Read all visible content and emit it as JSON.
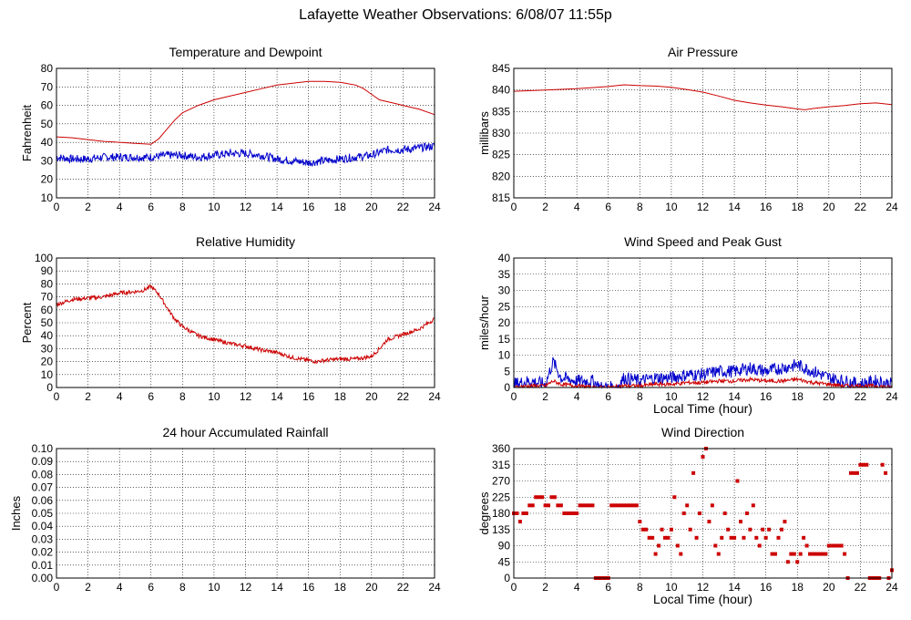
{
  "page_title": "Lafayette Weather Observations: 6/08/07 11:55p",
  "colors": {
    "red": "#cc0000",
    "blue": "#0000cc",
    "grid": "#000000"
  },
  "chart_data": [
    {
      "id": "temperature",
      "type": "line",
      "title": "Temperature and Dewpoint",
      "xlabel": "",
      "ylabel": "Fahrenheit",
      "xlim": [
        0,
        24
      ],
      "ylim": [
        10,
        80
      ],
      "xticks": [
        0,
        2,
        4,
        6,
        8,
        10,
        12,
        14,
        16,
        18,
        20,
        22,
        24
      ],
      "yticks": [
        10,
        20,
        30,
        40,
        50,
        60,
        70,
        80
      ],
      "grid": true,
      "series": [
        {
          "color": "#cc0000",
          "x": [
            0,
            1,
            2,
            3,
            4,
            5,
            6,
            6.5,
            7,
            7.5,
            8,
            8.5,
            9,
            10,
            11,
            12,
            13,
            14,
            15,
            16,
            17,
            18,
            19,
            19.5,
            20,
            20.5,
            21,
            21.5,
            22,
            23,
            24
          ],
          "y": [
            43,
            42.5,
            41.5,
            40.5,
            40,
            39.5,
            39,
            42,
            47,
            52,
            56,
            58,
            60,
            63,
            65,
            67,
            69,
            71,
            72,
            73,
            73,
            72.5,
            71,
            69,
            66,
            63,
            62,
            61,
            60,
            58,
            55
          ]
        },
        {
          "color": "#0000cc",
          "x": [
            0,
            1,
            2,
            3,
            4,
            5,
            6,
            7,
            8,
            9,
            10,
            11,
            12,
            13,
            14,
            15,
            16,
            17,
            18,
            19,
            20,
            21,
            22,
            23,
            24
          ],
          "y": [
            32,
            31,
            31,
            32,
            32,
            32,
            32,
            33,
            33,
            32,
            33,
            34,
            34,
            33,
            31,
            30,
            29,
            30,
            31,
            32,
            33,
            36,
            36,
            37,
            38
          ],
          "noisy": 2.2
        }
      ]
    },
    {
      "id": "pressure",
      "type": "line",
      "title": "Air Pressure",
      "xlabel": "",
      "ylabel": "millibars",
      "xlim": [
        0,
        24
      ],
      "ylim": [
        815,
        845
      ],
      "xticks": [
        0,
        2,
        4,
        6,
        8,
        10,
        12,
        14,
        16,
        18,
        20,
        22,
        24
      ],
      "yticks": [
        815,
        820,
        825,
        830,
        835,
        840,
        845
      ],
      "grid": true,
      "series": [
        {
          "color": "#cc0000",
          "x": [
            0,
            2,
            4,
            6,
            7,
            8,
            9,
            10,
            11,
            12,
            13,
            14,
            15,
            16,
            17,
            18,
            18.5,
            19,
            20,
            21,
            22,
            23,
            24
          ],
          "y": [
            839.7,
            840.0,
            840.3,
            840.8,
            841.2,
            841.0,
            840.9,
            840.6,
            840.1,
            839.5,
            838.6,
            837.6,
            837.0,
            836.5,
            836.1,
            835.6,
            835.4,
            835.7,
            836.1,
            836.4,
            836.8,
            837.0,
            836.6
          ]
        }
      ]
    },
    {
      "id": "humidity",
      "type": "line",
      "title": "Relative Humidity",
      "xlabel": "",
      "ylabel": "Percent",
      "xlim": [
        0,
        24
      ],
      "ylim": [
        0,
        100
      ],
      "xticks": [
        0,
        2,
        4,
        6,
        8,
        10,
        12,
        14,
        16,
        18,
        20,
        22,
        24
      ],
      "yticks": [
        0,
        10,
        20,
        30,
        40,
        50,
        60,
        70,
        80,
        90,
        100
      ],
      "grid": true,
      "series": [
        {
          "color": "#cc0000",
          "x": [
            0,
            1,
            2,
            3,
            4,
            5,
            5.5,
            6,
            6.5,
            7,
            7.5,
            8,
            9,
            10,
            11,
            12,
            13,
            14,
            15,
            16,
            16.5,
            17,
            18,
            19,
            20,
            20.5,
            21,
            22,
            23,
            24
          ],
          "y": [
            64,
            68,
            69,
            70,
            73,
            74,
            75,
            78,
            72,
            62,
            53,
            47,
            40,
            37,
            34,
            32,
            29,
            27,
            23,
            21,
            20,
            21,
            22,
            22,
            24,
            30,
            37,
            41,
            45,
            53
          ],
          "noisy": 1.5
        }
      ]
    },
    {
      "id": "wind",
      "type": "line",
      "title": "Wind Speed and Peak Gust",
      "xlabel": "Local Time (hour)",
      "ylabel": "miles/hour",
      "xlim": [
        0,
        24
      ],
      "ylim": [
        0,
        40
      ],
      "xticks": [
        0,
        2,
        4,
        6,
        8,
        10,
        12,
        14,
        16,
        18,
        20,
        22,
        24
      ],
      "yticks": [
        0,
        5,
        10,
        15,
        20,
        25,
        30,
        35,
        40
      ],
      "grid": true,
      "series": [
        {
          "color": "#0000cc",
          "x": [
            0,
            1,
            2,
            2.5,
            3,
            4,
            5,
            5.5,
            6,
            6.5,
            7,
            8,
            9,
            10,
            11,
            12,
            13,
            14,
            15,
            16,
            17,
            18,
            19,
            20,
            21,
            22,
            23,
            24
          ],
          "y": [
            1,
            2,
            1,
            8,
            3,
            2,
            2,
            0,
            0,
            0,
            3,
            2,
            3,
            3,
            4,
            4,
            5,
            5,
            6,
            5,
            6,
            7,
            5,
            3,
            2,
            1,
            2,
            1
          ],
          "noisy": 2.0
        },
        {
          "color": "#cc0000",
          "x": [
            0,
            1,
            2,
            2.5,
            3,
            4,
            5,
            6,
            7,
            8,
            9,
            10,
            11,
            12,
            13,
            14,
            15,
            16,
            17,
            18,
            19,
            20,
            21,
            22,
            23,
            24
          ],
          "y": [
            0,
            0.5,
            0.5,
            2,
            1,
            0.5,
            0,
            0,
            0.5,
            0.5,
            1,
            1,
            1.5,
            1.5,
            2,
            2,
            2.5,
            2,
            2,
            2.5,
            1.5,
            1,
            0.5,
            0.5,
            0.5,
            0
          ],
          "noisy": 0.6
        }
      ]
    },
    {
      "id": "rainfall",
      "type": "line",
      "title": "24 hour Accumulated Rainfall",
      "xlabel": "",
      "ylabel": "Inches",
      "xlim": [
        0,
        24
      ],
      "ylim": [
        0,
        0.1
      ],
      "xticks": [
        0,
        2,
        4,
        6,
        8,
        10,
        12,
        14,
        16,
        18,
        20,
        22,
        24
      ],
      "yticks": [
        "0.00",
        "0.01",
        "0.02",
        "0.03",
        "0.04",
        "0.05",
        "0.06",
        "0.07",
        "0.08",
        "0.09",
        "0.10"
      ],
      "grid": true,
      "series": [
        {
          "color": "#cc0000",
          "x": [
            0,
            24
          ],
          "y": [
            0,
            0
          ]
        }
      ]
    },
    {
      "id": "direction",
      "type": "scatter",
      "title": "Wind Direction",
      "xlabel": "Local Time (hour)",
      "ylabel": "degrees",
      "xlim": [
        0,
        24
      ],
      "ylim": [
        0,
        360
      ],
      "xticks": [
        0,
        2,
        4,
        6,
        8,
        10,
        12,
        14,
        16,
        18,
        20,
        22,
        24
      ],
      "yticks": [
        0,
        45,
        90,
        135,
        180,
        225,
        270,
        315,
        360
      ],
      "grid": true,
      "series": [
        {
          "color": "#cc0000",
          "x": [
            0,
            0.2,
            0.4,
            0.6,
            0.8,
            1.0,
            1.2,
            1.4,
            1.6,
            1.8,
            2.0,
            2.2,
            2.4,
            2.6,
            2.8,
            3.0,
            3.2,
            3.4,
            3.6,
            3.8,
            4.0,
            4.2,
            4.4,
            4.6,
            4.8,
            5.0,
            5.2,
            5.4,
            5.6,
            5.8,
            6.0,
            6.2,
            6.4,
            6.6,
            6.8,
            7.0,
            7.2,
            7.4,
            7.6,
            7.8,
            8.0,
            8.2,
            8.4,
            8.6,
            8.8,
            9.0,
            9.2,
            9.4,
            9.6,
            9.8,
            10.0,
            10.2,
            10.4,
            10.6,
            10.8,
            11.0,
            11.2,
            11.4,
            11.6,
            11.8,
            12.0,
            12.2,
            12.4,
            12.6,
            12.8,
            13.0,
            13.2,
            13.4,
            13.6,
            13.8,
            14.0,
            14.2,
            14.4,
            14.6,
            14.8,
            15.0,
            15.2,
            15.4,
            15.6,
            15.8,
            16.0,
            16.2,
            16.4,
            16.6,
            16.8,
            17.0,
            17.2,
            17.4,
            17.6,
            17.8,
            18.0,
            18.2,
            18.4,
            18.6,
            18.8,
            19.0,
            19.2,
            19.4,
            19.6,
            19.8,
            20.0,
            20.2,
            20.4,
            20.6,
            20.8,
            21.0,
            21.2,
            21.4,
            21.6,
            21.8,
            22.0,
            22.2,
            22.4,
            22.6,
            22.8,
            23.0,
            23.2,
            23.4,
            23.6,
            23.8,
            24.0
          ],
          "y": [
            180,
            180,
            157,
            180,
            180,
            202,
            202,
            225,
            225,
            225,
            202,
            202,
            225,
            225,
            202,
            202,
            180,
            180,
            180,
            180,
            180,
            202,
            202,
            202,
            202,
            202,
            0,
            0,
            0,
            0,
            0,
            202,
            202,
            202,
            202,
            202,
            202,
            202,
            202,
            202,
            157,
            135,
            135,
            112,
            112,
            67,
            90,
            135,
            112,
            112,
            135,
            225,
            90,
            67,
            180,
            202,
            135,
            292,
            112,
            180,
            337,
            360,
            157,
            202,
            90,
            67,
            112,
            180,
            135,
            112,
            112,
            270,
            157,
            112,
            180,
            135,
            202,
            112,
            90,
            135,
            112,
            135,
            67,
            67,
            112,
            135,
            157,
            45,
            67,
            67,
            45,
            67,
            112,
            90,
            67,
            67,
            67,
            67,
            67,
            67,
            90,
            90,
            90,
            90,
            90,
            67,
            0,
            292,
            292,
            292,
            315,
            315,
            315,
            0,
            0,
            0,
            0,
            315,
            292,
            0,
            22
          ]
        }
      ]
    }
  ]
}
